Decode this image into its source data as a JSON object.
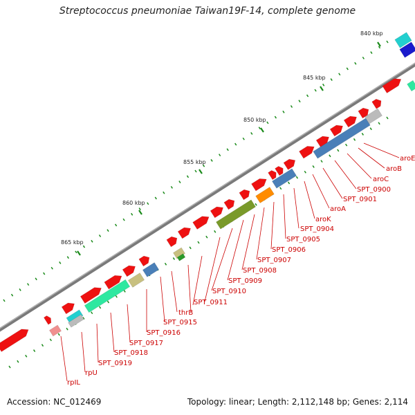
{
  "header": {
    "title": "Streptococcus pneumoniae Taiwan19F-14, complete genome"
  },
  "footer": {
    "accession": "Accession: NC_012469",
    "topology": "Topology: linear; Length: 2,112,148 bp; Genes: 2,114"
  },
  "scale_labels": [
    "840 kbp",
    "845 kbp",
    "850 kbp",
    "855 kbp",
    "860 kbp",
    "865 kbp"
  ],
  "gene_labels": [
    "aroE",
    "aroB",
    "aroC",
    "SPT_0900",
    "SPT_0901",
    "aroA",
    "aroK",
    "SPT_0904",
    "SPT_0905",
    "SPT_0906",
    "SPT_0907",
    "SPT_0908",
    "SPT_0909",
    "SPT_0910",
    "SPT_0911",
    "thrB",
    "SPT_0915",
    "SPT_0916",
    "SPT_0917",
    "SPT_0918",
    "SPT_0919",
    "rpU",
    "rpIL"
  ],
  "colors": {
    "backbone": "#7a7a7a",
    "gene_forward": "#ee1111",
    "label": "#cc0000",
    "tick": "#1a8a1a",
    "cog_blue": "#4a7fb8",
    "cog_teal": "#22cfcf",
    "cog_navy": "#1a1acc",
    "cog_green": "#2ee8a0",
    "cog_olive": "#7a9a2a",
    "cog_orange": "#ff8c00",
    "cog_grey": "#bbbbbb",
    "cog_tan": "#c8c080"
  }
}
